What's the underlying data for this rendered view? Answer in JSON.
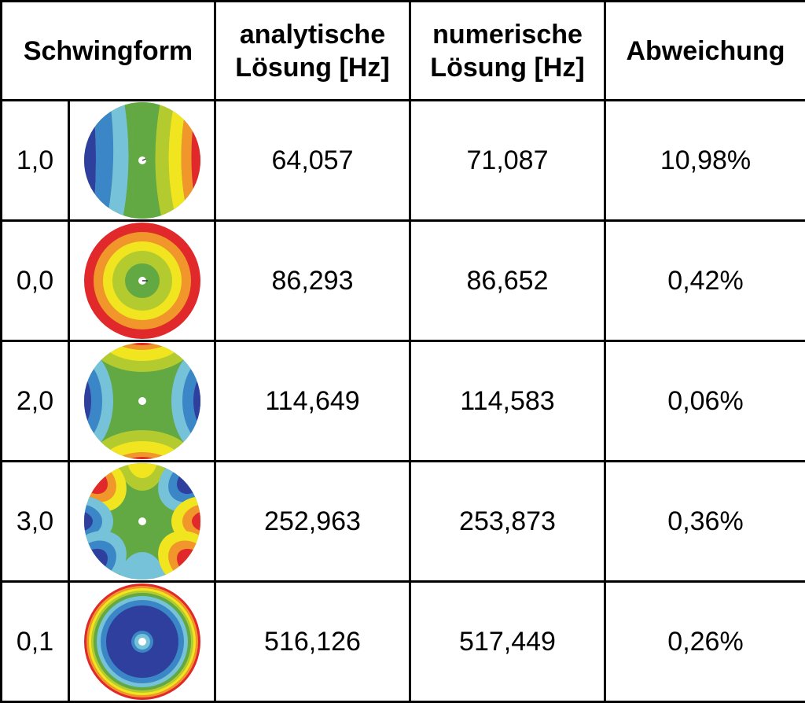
{
  "header": {
    "col_mode": "Schwingform",
    "col_analytic_line1": "analytische",
    "col_analytic_line2": "Lösung [Hz]",
    "col_numeric_line1": "numerische",
    "col_numeric_line2": "Lösung [Hz]",
    "col_deviation": "Abweichung"
  },
  "rows": [
    {
      "mode": "1,0",
      "shape_icon": "mode-1-0-icon",
      "analytic": "64,057",
      "numeric": "71,087",
      "deviation": "10,98%"
    },
    {
      "mode": "0,0",
      "shape_icon": "mode-0-0-icon",
      "analytic": "86,293",
      "numeric": "86,652",
      "deviation": "0,42%"
    },
    {
      "mode": "2,0",
      "shape_icon": "mode-2-0-icon",
      "analytic": "114,649",
      "numeric": "114,583",
      "deviation": "0,06%"
    },
    {
      "mode": "3,0",
      "shape_icon": "mode-3-0-icon",
      "analytic": "252,963",
      "numeric": "253,873",
      "deviation": "0,36%"
    },
    {
      "mode": "0,1",
      "shape_icon": "mode-0-1-icon",
      "analytic": "516,126",
      "numeric": "517,449",
      "deviation": "0,26%"
    }
  ],
  "colors": {
    "dark_blue": "#2e3f9e",
    "blue": "#3b86c6",
    "cyan": "#76c2d8",
    "green": "#62a843",
    "yellow_green": "#b3cb2f",
    "yellow": "#f1e51f",
    "orange": "#f0962a",
    "red": "#e1282b"
  }
}
